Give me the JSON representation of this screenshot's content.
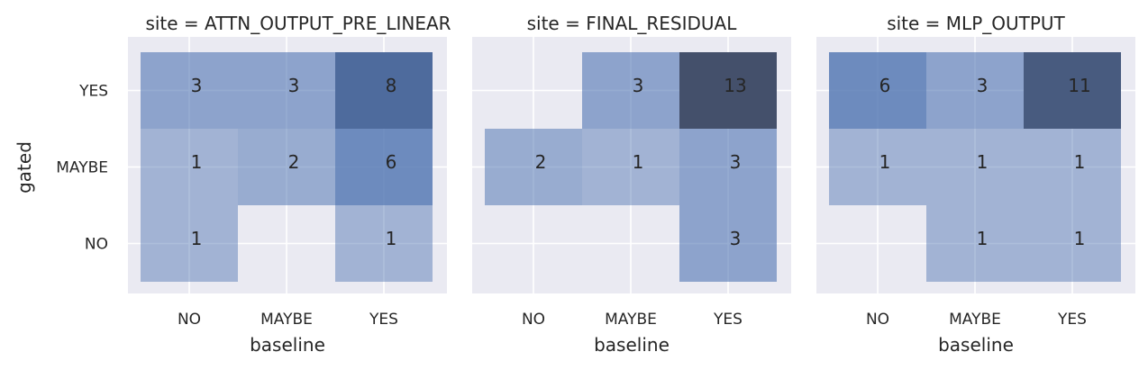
{
  "chart_data": {
    "type": "heatmap",
    "xlabel": "baseline",
    "ylabel": "gated",
    "x_categories": [
      "NO",
      "MAYBE",
      "YES"
    ],
    "y_categories": [
      "YES",
      "MAYBE",
      "NO"
    ],
    "facet_variable": "site",
    "grid": true,
    "color_range": [
      0,
      13
    ],
    "colors": {
      "background": "#eaeaf2",
      "cell_base": "#4c72b0",
      "high": "#44506b",
      "text": "#262626"
    },
    "panels": [
      {
        "title": "site = ATTN_OUTPUT_PRE_LINEAR",
        "values": [
          [
            3,
            3,
            8
          ],
          [
            1,
            2,
            6
          ],
          [
            1,
            null,
            1
          ]
        ]
      },
      {
        "title": "site = FINAL_RESIDUAL",
        "values": [
          [
            null,
            3,
            13
          ],
          [
            2,
            1,
            3
          ],
          [
            null,
            null,
            3
          ]
        ]
      },
      {
        "title": "site = MLP_OUTPUT",
        "values": [
          [
            6,
            3,
            11
          ],
          [
            1,
            1,
            1
          ],
          [
            null,
            1,
            1
          ]
        ]
      }
    ]
  }
}
